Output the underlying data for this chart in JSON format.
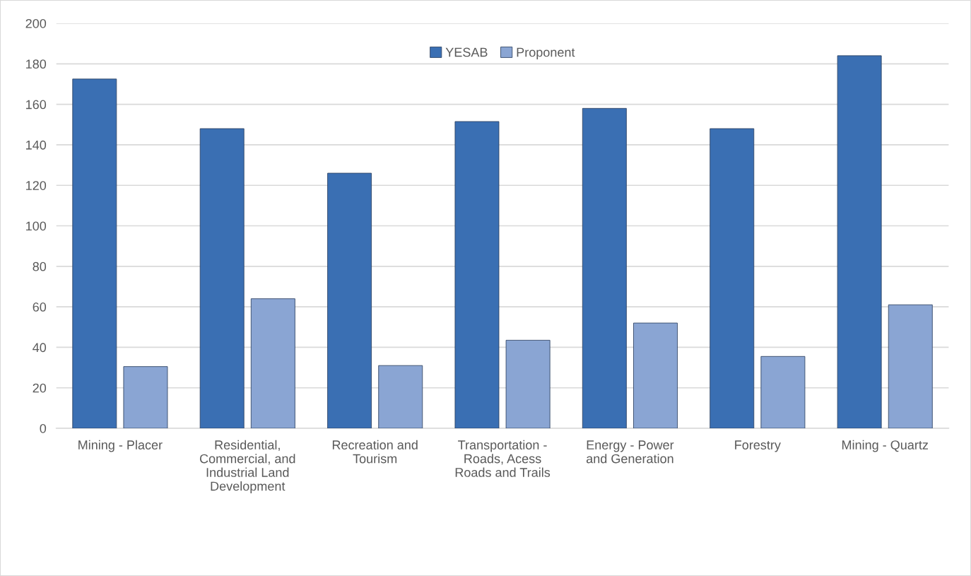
{
  "chart_data": {
    "type": "bar",
    "categories": [
      "Mining - Placer",
      "Residential, Commercial, and Industrial Land Development",
      "Recreation and Tourism",
      "Transportation - Roads, Acess Roads and Trails",
      "Energy - Power and Generation",
      "Forestry",
      "Mining - Quartz"
    ],
    "series": [
      {
        "name": "YESAB",
        "color": "#3a6fb3",
        "values": [
          172.5,
          148,
          126,
          151.5,
          158,
          148,
          184
        ]
      },
      {
        "name": "Proponent",
        "color": "#8aa5d3",
        "values": [
          30.5,
          64,
          31,
          43.5,
          52,
          35.5,
          61
        ]
      }
    ],
    "ylim": [
      0,
      200
    ],
    "yticks": [
      0,
      20,
      40,
      60,
      80,
      100,
      120,
      140,
      160,
      180,
      200
    ],
    "grid": "y",
    "legend": "top"
  }
}
